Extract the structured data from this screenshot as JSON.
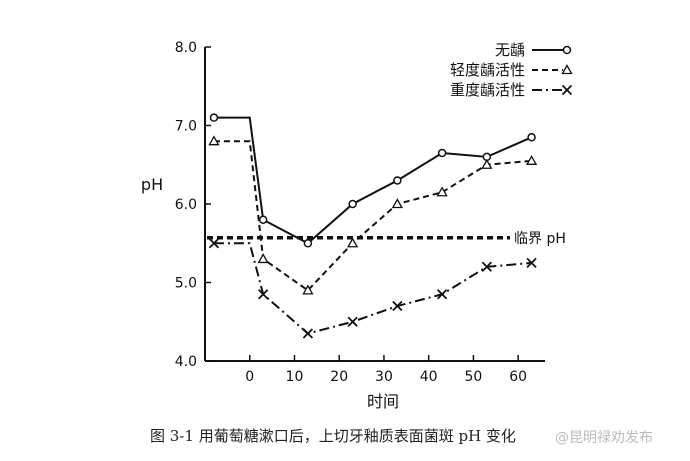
{
  "chart_data": {
    "type": "line",
    "xlabel": "时间",
    "ylabel": "pH",
    "xlim": [
      -10,
      66
    ],
    "ylim": [
      4.0,
      8.0
    ],
    "xticks": [
      0,
      10,
      20,
      30,
      40,
      50,
      60
    ],
    "yticks": [
      4.0,
      5.0,
      6.0,
      7.0,
      8.0
    ],
    "ytick_labels": [
      "4.0",
      "5.0",
      "6.0",
      "7.0",
      "8.0"
    ],
    "grid": false,
    "legend": "top-right",
    "series": [
      {
        "name": "无龋",
        "marker": "o",
        "style": "solid",
        "x": [
          -8,
          0,
          3,
          13,
          23,
          33,
          43,
          53,
          63
        ],
        "y": [
          7.1,
          7.1,
          5.8,
          5.5,
          6.0,
          6.3,
          6.65,
          6.6,
          6.85
        ]
      },
      {
        "name": "轻度龋活性",
        "marker": "triangle",
        "style": "dashed",
        "x": [
          -8,
          0,
          3,
          13,
          23,
          33,
          43,
          53,
          63
        ],
        "y": [
          6.8,
          6.8,
          5.3,
          4.9,
          5.5,
          6.0,
          6.15,
          6.5,
          6.55
        ]
      },
      {
        "name": "重度龋活性",
        "marker": "x",
        "style": "dashdot",
        "x": [
          -8,
          0,
          3,
          13,
          23,
          33,
          43,
          53,
          63
        ],
        "y": [
          5.5,
          5.5,
          4.85,
          4.35,
          4.5,
          4.7,
          4.85,
          5.2,
          5.25
        ]
      }
    ],
    "reference_line": {
      "label": "临界 pH",
      "y": 5.57
    }
  },
  "caption": "图 3-1   用葡萄糖漱口后，上切牙釉质表面菌斑 pH 变化",
  "watermark": "@昆明禄劝发布"
}
